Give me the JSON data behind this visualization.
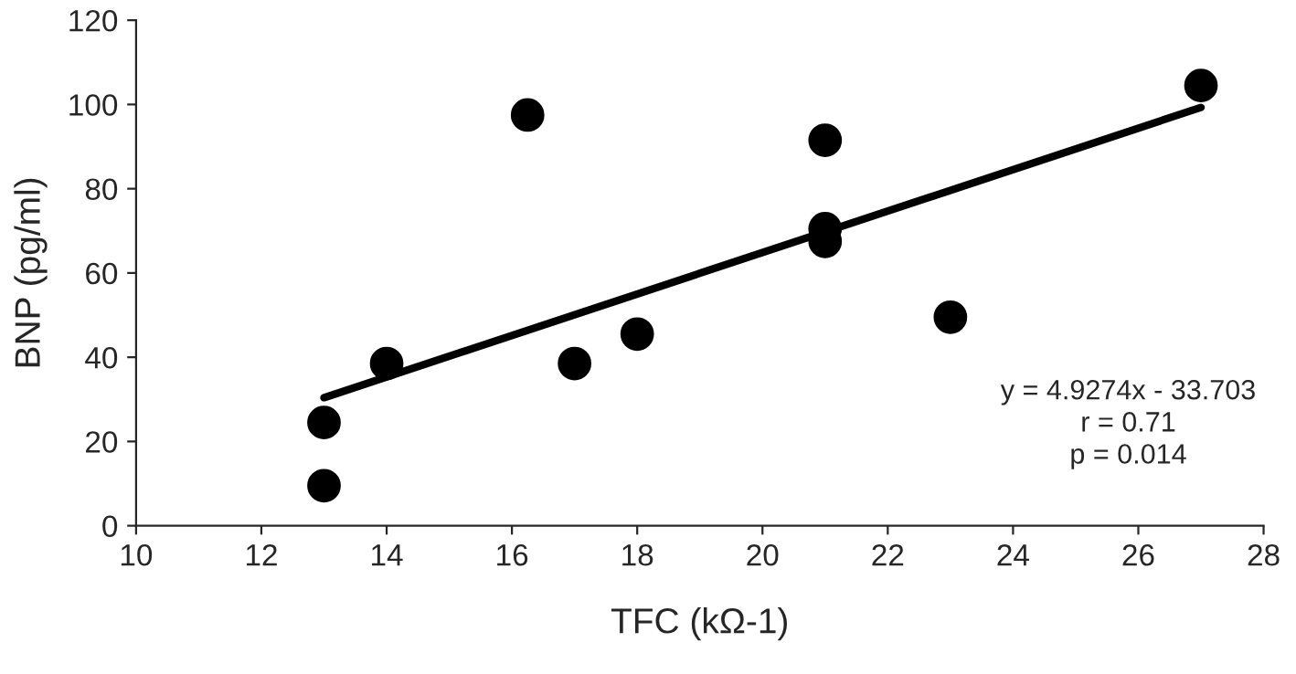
{
  "chart_data": {
    "type": "scatter",
    "xlabel": "TFC (kΩ-1)",
    "ylabel": "BNP (pg/ml)",
    "xlim": [
      10,
      28
    ],
    "xticks": [
      10,
      12,
      14,
      16,
      18,
      20,
      22,
      24,
      26,
      28
    ],
    "ylim": [
      0,
      120
    ],
    "yticks": [
      0,
      20,
      40,
      60,
      80,
      100,
      120
    ],
    "grid": false,
    "legend": false,
    "series": [
      {
        "marker": "circle",
        "color": "#000000",
        "x": [
          13,
          13,
          14,
          16.25,
          17,
          18,
          21,
          21,
          21,
          23,
          27
        ],
        "values": [
          24.5,
          9.5,
          38.5,
          97.5,
          38.5,
          45.5,
          91.5,
          70.5,
          67.5,
          49.5,
          104.5
        ]
      },
      {
        "type": "line",
        "marker": "none",
        "color": "#000000",
        "x": [
          13,
          27
        ],
        "values": [
          30.4,
          99.3
        ]
      }
    ],
    "annotations": [
      "y = 4.9274x - 33.703\nr = 0.71\np = 0.014"
    ]
  }
}
